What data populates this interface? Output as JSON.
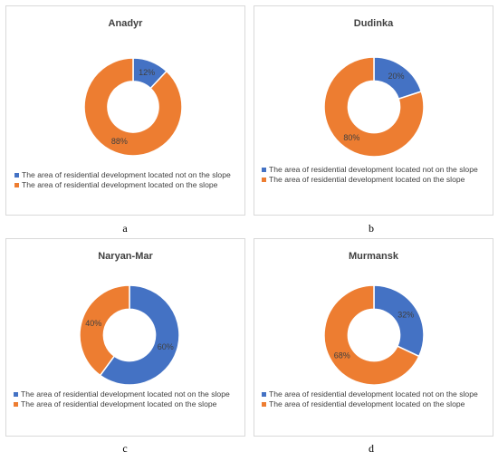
{
  "colors": {
    "blue": "#4472c4",
    "orange": "#ed7d31"
  },
  "chart_data": [
    {
      "type": "pie",
      "title": "Anadyr",
      "caption": "a",
      "series": [
        {
          "name": "The area of residential development located not on the slope",
          "value": 12,
          "label": "12%"
        },
        {
          "name": "The area of residential development located on the slope",
          "value": 88,
          "label": "88%"
        }
      ],
      "legend": "bottom"
    },
    {
      "type": "pie",
      "title": "Dudinka",
      "caption": "b",
      "series": [
        {
          "name": "The area of residential development located not on the slope",
          "value": 20,
          "label": "20%"
        },
        {
          "name": "The area of residential development located on the slope",
          "value": 80,
          "label": "80%"
        }
      ],
      "legend": "bottom"
    },
    {
      "type": "pie",
      "title": "Naryan-Mar",
      "caption": "c",
      "series": [
        {
          "name": "The area of residential development located not on the slope",
          "value": 60,
          "label": "60%"
        },
        {
          "name": "The area of residential development located on the slope",
          "value": 40,
          "label": "40%"
        }
      ],
      "legend": "bottom"
    },
    {
      "type": "pie",
      "title": "Murmansk",
      "caption": "d",
      "series": [
        {
          "name": "The area of residential development located not on the slope",
          "value": 32,
          "label": "32%"
        },
        {
          "name": "The area of residential development located on the slope",
          "value": 68,
          "label": "68%"
        }
      ],
      "legend": "bottom"
    }
  ]
}
